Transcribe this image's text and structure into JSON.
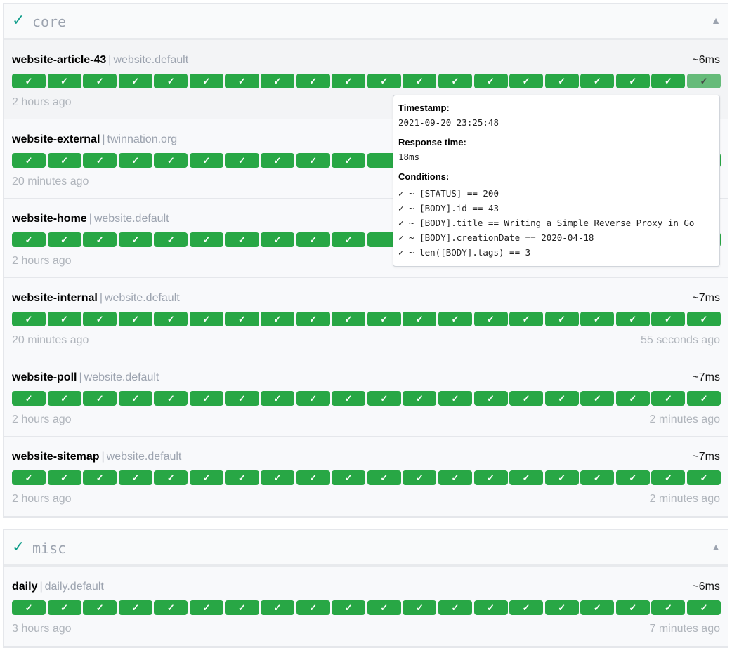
{
  "colors": {
    "success": "#28a745",
    "hovered": "#66bb7a",
    "group_check": "#0f9d8a"
  },
  "bars_per_row": 20,
  "bar_glyph": "✓",
  "groups": [
    {
      "name": "core",
      "status_icon": "✓",
      "toggle_icon": "▲",
      "endpoints": [
        {
          "name": "website-article-43",
          "group": "website.default",
          "response": "~6ms",
          "oldest": "2 hours ago",
          "newest": "",
          "hovered_bar": 19
        },
        {
          "name": "website-external",
          "group": "twinnation.org",
          "response": "",
          "oldest": "20 minutes ago",
          "newest": ""
        },
        {
          "name": "website-home",
          "group": "website.default",
          "response": "",
          "oldest": "2 hours ago",
          "newest": ""
        },
        {
          "name": "website-internal",
          "group": "website.default",
          "response": "~7ms",
          "oldest": "20 minutes ago",
          "newest": "55 seconds ago"
        },
        {
          "name": "website-poll",
          "group": "website.default",
          "response": "~7ms",
          "oldest": "2 hours ago",
          "newest": "2 minutes ago"
        },
        {
          "name": "website-sitemap",
          "group": "website.default",
          "response": "~7ms",
          "oldest": "2 hours ago",
          "newest": "2 minutes ago"
        }
      ]
    },
    {
      "name": "misc",
      "status_icon": "✓",
      "toggle_icon": "▲",
      "endpoints": [
        {
          "name": "daily",
          "group": "daily.default",
          "response": "~6ms",
          "oldest": "3 hours ago",
          "newest": "7 minutes ago"
        }
      ]
    }
  ],
  "tooltip": {
    "timestamp_label": "Timestamp:",
    "timestamp": "2021-09-20 23:25:48",
    "response_label": "Response time:",
    "response": "18ms",
    "conditions_label": "Conditions:",
    "conditions": [
      "✓ ~ [STATUS] == 200",
      "✓ ~ [BODY].id == 43",
      "✓ ~ [BODY].title == Writing a Simple Reverse Proxy in Go",
      "✓ ~ [BODY].creationDate == 2020-04-18",
      "✓ ~ len([BODY].tags) == 3"
    ]
  }
}
